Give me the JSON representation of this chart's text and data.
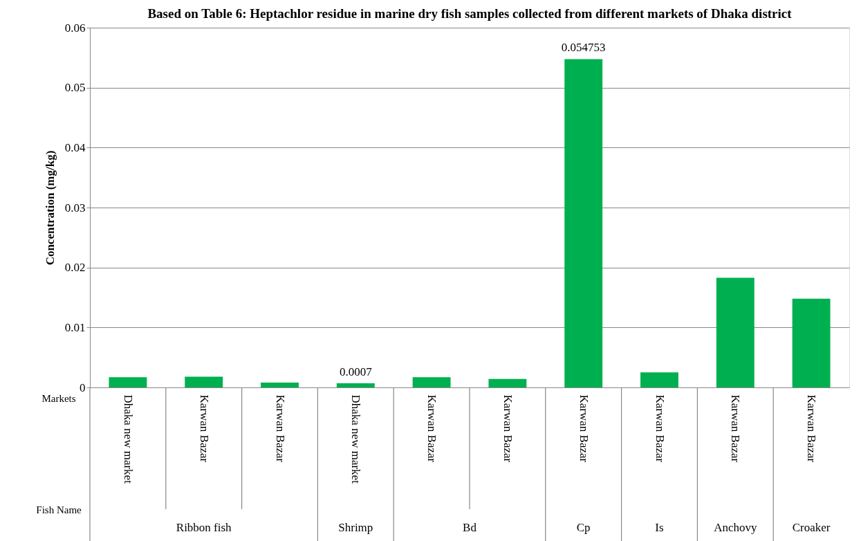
{
  "chart_data": {
    "type": "bar",
    "title": "Based on Table 6: Heptachlor residue in marine dry fish samples collected from different markets of Dhaka district",
    "ylabel": "Concentration (mg/kg)",
    "categories": [
      "Dhaka new market",
      "Karwan Bazar",
      "Karwan Bazar",
      "Dhaka new market",
      "Karwan Bazar",
      "Karwan Bazar",
      "Karwan Bazar",
      "Karwan Bazar",
      "Karwan Bazar",
      "Karwan Bazar"
    ],
    "values": [
      0.0017,
      0.0018,
      0.0008,
      0.0007,
      0.0017,
      0.0014,
      0.054753,
      0.0025,
      0.0183,
      0.0148
    ],
    "value_labels": [
      null,
      null,
      null,
      "0.0007",
      null,
      null,
      "0.054753",
      null,
      null,
      null
    ],
    "color": "#00b050",
    "ylim": [
      0,
      0.06
    ],
    "yticks": [
      0,
      0.01,
      0.02,
      0.03,
      0.04,
      0.05,
      0.06
    ],
    "grid": "y",
    "annotations": [
      "Markets",
      "Fish Name",
      "Ribbon fish",
      "Shrimp",
      "Bd",
      "Cp",
      "Is",
      "Anchovy",
      "Croaker"
    ]
  }
}
